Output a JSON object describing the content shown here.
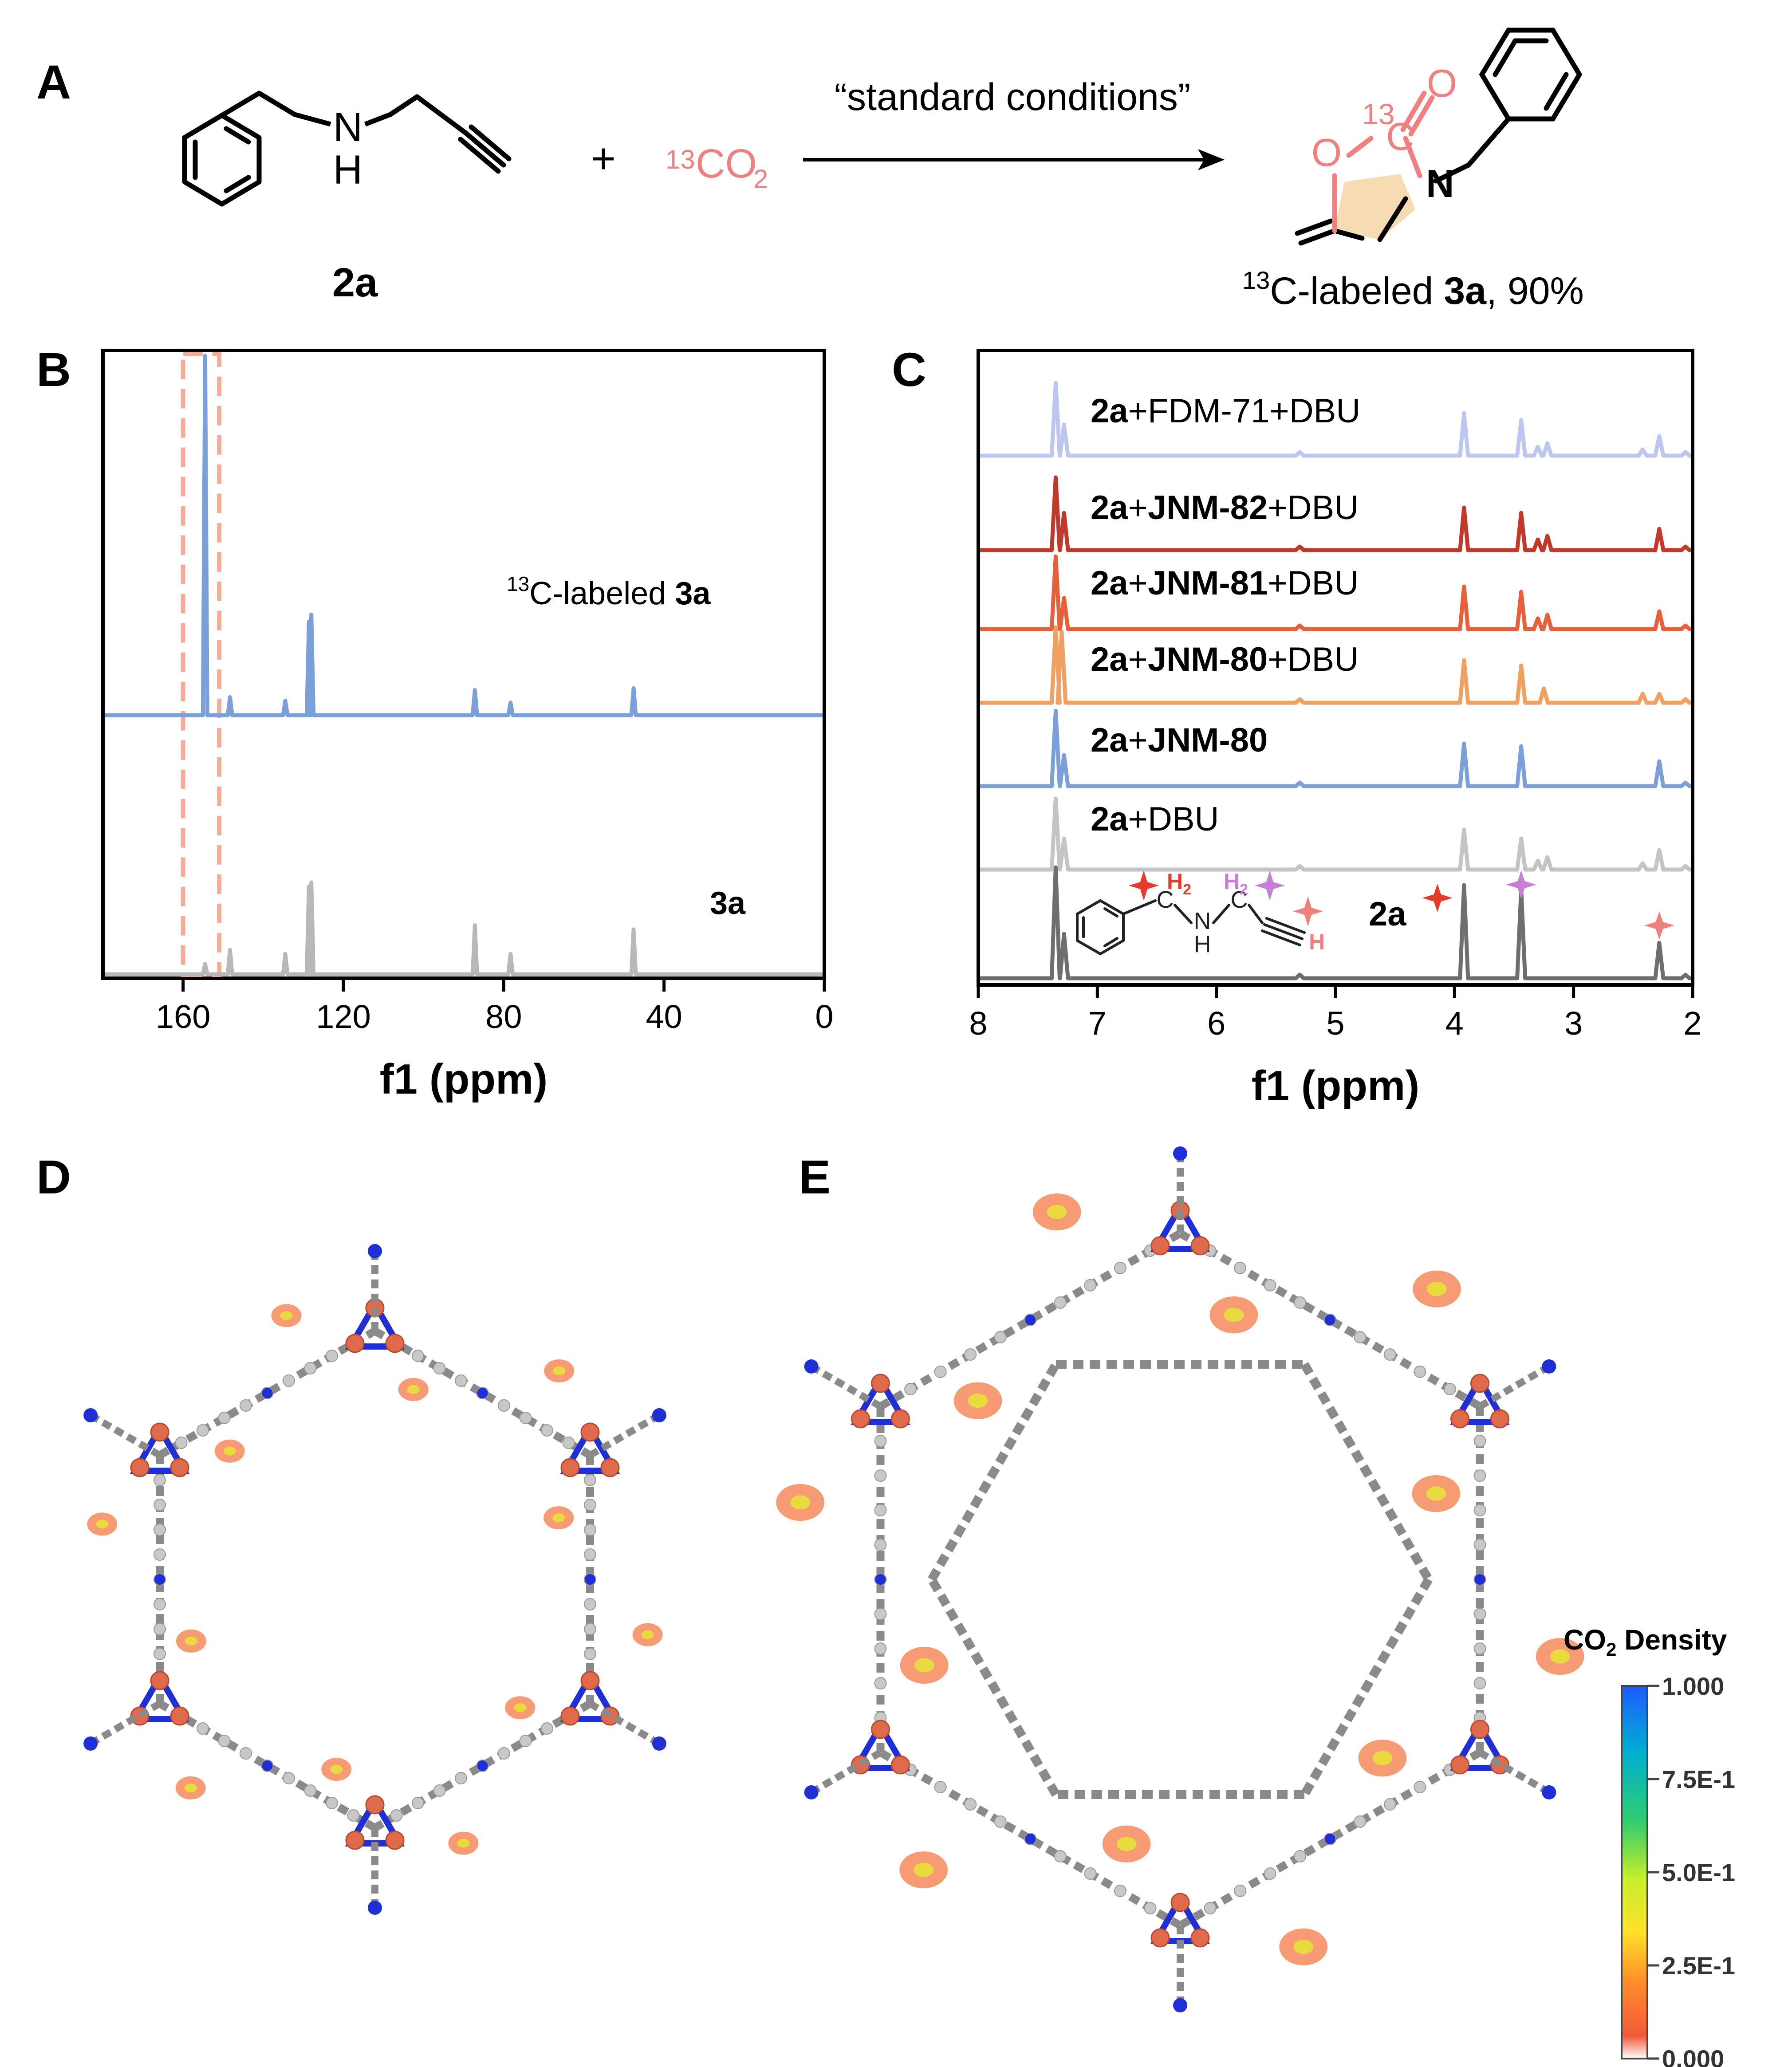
{
  "panels": {
    "A": "A",
    "B": "B",
    "C": "C",
    "D": "D",
    "E": "E"
  },
  "colors": {
    "coral": "#f08080",
    "blue": "#7b9fd8",
    "gray": "#b8b8b8",
    "darkgray": "#6e6e6e",
    "lav": "#bcc6f0",
    "red": "#c0392b",
    "orangered": "#e5603b",
    "orange": "#f0a060",
    "lightgray": "#c4c4c4",
    "bond": "#7f7f7f",
    "atomBlue": "#1f2fd6",
    "ring": "#f4cf9a"
  },
  "reaction": {
    "reactant_label": "2a",
    "plus": "+",
    "co2_sup": "13",
    "co2_main": "CO",
    "co2_sub": "2",
    "condition": "“standard conditions”",
    "amine_N": "N",
    "amine_H": "H",
    "product_O_ring": "O",
    "product_O_carbonyl": "O",
    "product_13": "13",
    "product_C": "C",
    "product_N": "N",
    "product_label_sup": "13",
    "product_label_main": "C-labeled ",
    "product_label_bold": "3a",
    "product_label_tail": ", 90%"
  },
  "chart_data": [
    {
      "type": "line",
      "panel": "B",
      "title": "",
      "xlabel": "f1 (ppm)",
      "xlim": [
        180,
        0
      ],
      "xticks": [
        160,
        120,
        80,
        40,
        0
      ],
      "highlight_range": [
        160,
        151
      ],
      "series": [
        {
          "name_sup": "13",
          "name_text": "C-labeled ",
          "name_bold": "3a",
          "color": "#7b9fd8",
          "peaks": [
            [
              154.5,
              1.0
            ],
            [
              148.3,
              0.05
            ],
            [
              134.5,
              0.04
            ],
            [
              128.6,
              0.26
            ],
            [
              128.0,
              0.28
            ],
            [
              87.2,
              0.07
            ],
            [
              78.3,
              0.035
            ],
            [
              47.6,
              0.075
            ]
          ]
        },
        {
          "name_sup": "",
          "name_text": "",
          "name_bold": "3a",
          "color": "#b8b8b8",
          "peaks": [
            [
              154.5,
              0.05
            ],
            [
              148.3,
              0.12
            ],
            [
              134.5,
              0.1
            ],
            [
              128.6,
              0.43
            ],
            [
              128.0,
              0.45
            ],
            [
              87.2,
              0.24
            ],
            [
              78.3,
              0.1
            ],
            [
              47.6,
              0.22
            ]
          ]
        }
      ]
    },
    {
      "type": "line",
      "panel": "C",
      "title": "",
      "xlabel": "f1 (ppm)",
      "xlim": [
        8,
        2
      ],
      "xticks": [
        8,
        7,
        6,
        5,
        4,
        3,
        2
      ],
      "series": [
        {
          "name_bold": "2a",
          "name_plus": "+",
          "name_mid": "FDM-71",
          "name_mid_bold": false,
          "name_tail": "+DBU",
          "color": "#bcc6f0",
          "peaks": [
            [
              7.35,
              0.82
            ],
            [
              7.28,
              0.35
            ],
            [
              5.3,
              0.04
            ],
            [
              3.92,
              0.48
            ],
            [
              3.44,
              0.4
            ],
            [
              3.3,
              0.1
            ],
            [
              3.22,
              0.14
            ],
            [
              2.42,
              0.07
            ],
            [
              2.28,
              0.22
            ],
            [
              2.06,
              0.04
            ]
          ]
        },
        {
          "name_bold": "2a",
          "name_plus": "+",
          "name_mid": "JNM-82",
          "name_mid_bold": true,
          "name_tail": "+DBU",
          "color": "#c0392b",
          "peaks": [
            [
              7.35,
              0.82
            ],
            [
              7.28,
              0.42
            ],
            [
              5.3,
              0.04
            ],
            [
              3.92,
              0.48
            ],
            [
              3.44,
              0.42
            ],
            [
              3.3,
              0.12
            ],
            [
              3.22,
              0.16
            ],
            [
              2.28,
              0.24
            ],
            [
              2.06,
              0.04
            ]
          ]
        },
        {
          "name_bold": "2a",
          "name_plus": "+",
          "name_mid": "JNM-81",
          "name_mid_bold": true,
          "name_tail": "+DBU",
          "color": "#e5603b",
          "peaks": [
            [
              7.35,
              0.82
            ],
            [
              7.28,
              0.35
            ],
            [
              5.3,
              0.04
            ],
            [
              3.92,
              0.48
            ],
            [
              3.44,
              0.42
            ],
            [
              3.3,
              0.12
            ],
            [
              3.22,
              0.16
            ],
            [
              2.28,
              0.2
            ],
            [
              2.06,
              0.04
            ]
          ]
        },
        {
          "name_bold": "2a",
          "name_plus": "+",
          "name_mid": "JNM-80",
          "name_mid_bold": true,
          "name_tail": "+DBU",
          "color": "#f0a060",
          "peaks": [
            [
              7.35,
              0.85
            ],
            [
              7.3,
              0.8
            ],
            [
              5.3,
              0.04
            ],
            [
              3.92,
              0.48
            ],
            [
              3.44,
              0.42
            ],
            [
              3.25,
              0.16
            ],
            [
              2.42,
              0.1
            ],
            [
              2.28,
              0.1
            ],
            [
              2.06,
              0.04
            ]
          ]
        },
        {
          "name_bold": "2a",
          "name_plus": "+",
          "name_mid": "JNM-80",
          "name_mid_bold": true,
          "name_tail": "",
          "color": "#7b9fd8",
          "peaks": [
            [
              7.35,
              0.85
            ],
            [
              7.28,
              0.35
            ],
            [
              5.3,
              0.04
            ],
            [
              3.92,
              0.48
            ],
            [
              3.44,
              0.45
            ],
            [
              2.28,
              0.28
            ],
            [
              2.06,
              0.04
            ]
          ]
        },
        {
          "name_bold": "2a",
          "name_plus": "+",
          "name_mid": "DBU",
          "name_mid_bold": false,
          "name_tail": "",
          "color": "#c4c4c4",
          "peaks": [
            [
              7.35,
              0.8
            ],
            [
              7.28,
              0.35
            ],
            [
              5.3,
              0.04
            ],
            [
              3.92,
              0.45
            ],
            [
              3.44,
              0.35
            ],
            [
              3.3,
              0.1
            ],
            [
              3.22,
              0.14
            ],
            [
              2.42,
              0.07
            ],
            [
              2.28,
              0.22
            ],
            [
              2.06,
              0.04
            ]
          ]
        },
        {
          "name_bold": "2a",
          "name_plus": "",
          "name_mid": "",
          "name_mid_bold": false,
          "name_tail": "",
          "color": "#6e6e6e",
          "peaks": [
            [
              7.35,
              1.25
            ],
            [
              7.28,
              0.5
            ],
            [
              5.3,
              0.04
            ],
            [
              3.92,
              1.05
            ],
            [
              3.44,
              1.0
            ],
            [
              2.28,
              0.4
            ],
            [
              2.06,
              0.04
            ]
          ]
        }
      ],
      "inset": {
        "H2a": "H",
        "H2a_sub": "2",
        "H2b": "H",
        "H2b_sub": "2",
        "NH_N": "N",
        "NH_H": "H",
        "C1": "C",
        "C2": "C",
        "alkyne_H": "H"
      }
    },
    {
      "type": "heatmap",
      "panel": "E",
      "colorbar": {
        "title_main": "CO",
        "title_sub": "2",
        "title_tail": " Density",
        "ticks": [
          "1.000",
          "7.5E-1",
          "5.0E-1",
          "2.5E-1",
          "0.000"
        ],
        "values": [
          1.0,
          0.75,
          0.5,
          0.25,
          0.0
        ],
        "stops": [
          "#1e5cff",
          "#00b0d0",
          "#2ecc71",
          "#c8ee2a",
          "#ffe02a",
          "#ff8a2a",
          "#f25a3a",
          "#ffffff"
        ]
      }
    }
  ]
}
